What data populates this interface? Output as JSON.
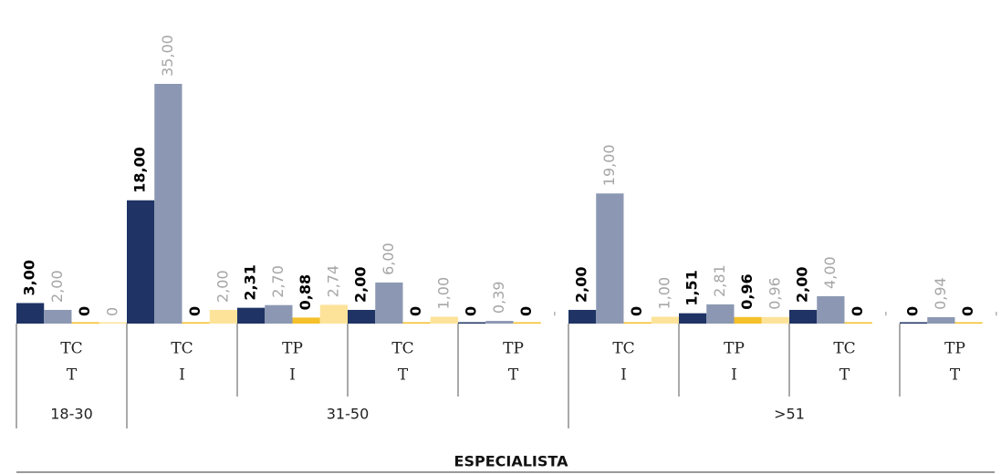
{
  "chart_data": {
    "type": "bar",
    "title": "ESPECIALISTA",
    "groups": [
      {
        "label": "18-30",
        "categories": [
          [
            "TC",
            "T"
          ]
        ]
      },
      {
        "label": "31-50",
        "categories": [
          [
            "TC",
            "I"
          ],
          [
            "TP",
            "I"
          ],
          [
            "TC",
            "T"
          ],
          [
            "TP",
            "T"
          ]
        ]
      },
      {
        "label": ">51",
        "categories": [
          [
            "TC",
            "I"
          ],
          [
            "TP",
            "I"
          ],
          [
            "TC",
            "T"
          ],
          [
            "TP",
            "T"
          ]
        ]
      }
    ],
    "series": [
      {
        "color": "#1f3464",
        "label_color": "#000000",
        "label_bold": true,
        "values": [
          3,
          18,
          2.31,
          2,
          0,
          2,
          1.51,
          2,
          0
        ],
        "value_labels": [
          "3,00",
          "18,00",
          "2,31",
          "2,00",
          "0",
          "2,00",
          "1,51",
          "2,00",
          "0"
        ]
      },
      {
        "color": "#8c98b3",
        "label_color": "#a6a6a6",
        "label_bold": false,
        "values": [
          2,
          35,
          2.7,
          6,
          0.39,
          19,
          2.81,
          4,
          0.94
        ],
        "value_labels": [
          "2,00",
          "35,00",
          "2,70",
          "6,00",
          "0,39",
          "19,00",
          "2,81",
          "4,00",
          "0,94"
        ]
      },
      {
        "color": "#f5c02a",
        "label_color": "#000000",
        "label_bold": true,
        "values": [
          0,
          0,
          0.88,
          0,
          0,
          0,
          0.96,
          0,
          0
        ],
        "value_labels": [
          "0",
          "0",
          "0,88",
          "0",
          "0",
          "0",
          "0,96",
          "0",
          "0"
        ]
      },
      {
        "color": "#fde39a",
        "label_color": "#a6a6a6",
        "label_bold": false,
        "values": [
          0,
          2,
          2.74,
          1,
          null,
          1,
          0.96,
          null,
          null
        ],
        "value_labels": [
          "0",
          "2,00",
          "2,74",
          "1,00",
          "-",
          "1,00",
          "0,96",
          "-",
          "-"
        ]
      }
    ]
  }
}
